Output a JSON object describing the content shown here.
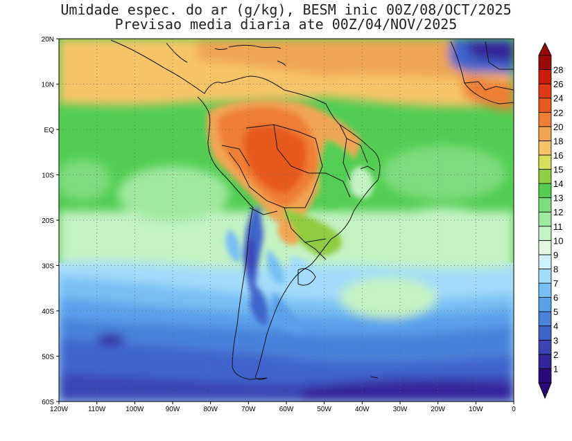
{
  "title": {
    "line1": "Umidade espec. do ar (g/kg), BESM inic 00Z/08/OCT/2025",
    "line2": "Previsao media diaria ate 00Z/04/NOV/2025"
  },
  "map": {
    "lat_labels": [
      "20N",
      "10N",
      "EQ",
      "10S",
      "20S",
      "30S",
      "40S",
      "50S",
      "60S"
    ],
    "lon_labels": [
      "120W",
      "110W",
      "100W",
      "90W",
      "80W",
      "70W",
      "60W",
      "50W",
      "40W",
      "30W",
      "20W",
      "10W",
      "0"
    ],
    "lon_range": [
      -120,
      0
    ],
    "lat_range": [
      -60,
      20
    ],
    "gridlines": "dotted"
  },
  "colorbar": {
    "levels": [
      "1",
      "2",
      "3",
      "4",
      "5",
      "6",
      "7",
      "8",
      "9",
      "10",
      "11",
      "12",
      "13",
      "14",
      "15",
      "16",
      "18",
      "20",
      "22",
      "24",
      "26",
      "28"
    ],
    "colors": [
      "#2a0a78",
      "#34249a",
      "#3a44b4",
      "#3f63cc",
      "#4a82dc",
      "#5aa0ea",
      "#78bff4",
      "#a3dcfa",
      "#cdf0fb",
      "#e0fae0",
      "#c3f3c3",
      "#a0e9a0",
      "#7ddc7d",
      "#52cd52",
      "#8fcc40",
      "#d6e05a",
      "#f6c466",
      "#f0a552",
      "#ee7f34",
      "#e85a1e",
      "#df3a14",
      "#c81c0c",
      "#9c0a08"
    ],
    "arrows": "both"
  }
}
